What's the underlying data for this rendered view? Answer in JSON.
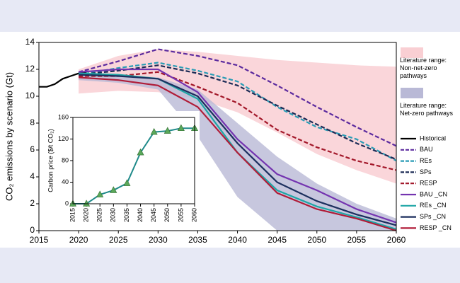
{
  "chart_data": [
    {
      "type": "line",
      "ylabel": "CO₂ emissions by scenario (Gt)",
      "xlim": [
        2015,
        2060
      ],
      "xticks": [
        2015,
        2020,
        2025,
        2030,
        2035,
        2040,
        2045,
        2050,
        2055,
        2060
      ],
      "ylim": [
        0,
        14
      ],
      "yticks": [
        0,
        2,
        4,
        6,
        8,
        10,
        12,
        14
      ],
      "bands": [
        {
          "name": "Literature range: Non-net-zero pathways",
          "color": "#f9cfd3",
          "x": [
            2020,
            2025,
            2030,
            2035,
            2040,
            2045,
            2050,
            2055,
            2060
          ],
          "upper": [
            12.0,
            13.0,
            13.5,
            13.3,
            13.0,
            12.7,
            12.5,
            12.3,
            12.2
          ],
          "lower": [
            10.2,
            10.4,
            10.3,
            9.8,
            8.8,
            7.3,
            5.7,
            4.5,
            3.5
          ]
        },
        {
          "name": "Literature range: Net-zero pathways",
          "color": "#b9b9d6",
          "x": [
            2020,
            2025,
            2030,
            2035,
            2040,
            2045,
            2050,
            2055,
            2060
          ],
          "upper": [
            11.6,
            11.6,
            11.4,
            10.5,
            8.0,
            5.5,
            3.5,
            2.0,
            0.9
          ],
          "lower": [
            11.2,
            11.0,
            10.5,
            7.0,
            2.5,
            0,
            0,
            0,
            0
          ]
        }
      ],
      "series": [
        {
          "name": "Historical",
          "color": "#000000",
          "dashed": false,
          "x": [
            2015,
            2016,
            2017,
            2018,
            2019,
            2020,
            2021
          ],
          "values": [
            10.7,
            10.7,
            10.9,
            11.3,
            11.5,
            11.7,
            11.8
          ]
        },
        {
          "name": "BAU",
          "color": "#5b2a9e",
          "dashed": true,
          "x": [
            2020,
            2025,
            2030,
            2035,
            2040,
            2045,
            2050,
            2055,
            2060
          ],
          "values": [
            11.8,
            12.6,
            13.5,
            13.0,
            12.3,
            10.8,
            9.2,
            7.7,
            6.3
          ]
        },
        {
          "name": "REs",
          "color": "#2a9cb5",
          "dashed": true,
          "x": [
            2020,
            2025,
            2030,
            2035,
            2040,
            2045,
            2050,
            2055,
            2060
          ],
          "values": [
            11.6,
            12.1,
            12.5,
            11.9,
            11.1,
            9.2,
            7.7,
            6.8,
            5.2
          ]
        },
        {
          "name": "SPs",
          "color": "#1b2a55",
          "dashed": true,
          "x": [
            2020,
            2025,
            2030,
            2035,
            2040,
            2045,
            2050,
            2055,
            2060
          ],
          "values": [
            11.6,
            11.9,
            12.3,
            11.7,
            10.8,
            9.3,
            7.9,
            6.5,
            5.3
          ]
        },
        {
          "name": "RESP",
          "color": "#a3182a",
          "dashed": true,
          "x": [
            2020,
            2025,
            2030,
            2035,
            2040,
            2045,
            2050,
            2055,
            2060
          ],
          "values": [
            11.5,
            11.5,
            11.8,
            10.7,
            9.5,
            7.5,
            6.2,
            5.2,
            4.5
          ]
        },
        {
          "name": "BAU _CN",
          "color": "#7434b0",
          "dashed": false,
          "x": [
            2020,
            2025,
            2030,
            2035,
            2040,
            2045,
            2050,
            2055,
            2060
          ],
          "values": [
            11.8,
            12.0,
            12.0,
            10.3,
            6.8,
            4.2,
            3.0,
            1.6,
            0.6
          ]
        },
        {
          "name": "REs _CN",
          "color": "#1fa6a6",
          "dashed": false,
          "x": [
            2020,
            2025,
            2030,
            2035,
            2040,
            2045,
            2050,
            2055,
            2060
          ],
          "values": [
            11.7,
            11.6,
            11.3,
            9.8,
            5.8,
            3.0,
            1.8,
            1.0,
            0.1
          ]
        },
        {
          "name": "SPs _CN",
          "color": "#1c2f5e",
          "dashed": false,
          "x": [
            2020,
            2025,
            2030,
            2035,
            2040,
            2045,
            2050,
            2055,
            2060
          ],
          "values": [
            11.6,
            11.5,
            11.3,
            10.0,
            6.5,
            3.6,
            2.2,
            1.2,
            0.4
          ]
        },
        {
          "name": "RESP _CN",
          "color": "#b01c38",
          "dashed": false,
          "x": [
            2020,
            2025,
            2030,
            2035,
            2040,
            2045,
            2050,
            2055,
            2060
          ],
          "values": [
            11.4,
            11.2,
            10.8,
            9.2,
            5.8,
            2.8,
            1.6,
            0.9,
            0.0
          ]
        }
      ]
    },
    {
      "type": "line",
      "ylabel": "Carbon price ($/t CO₂)",
      "xlim": [
        2015,
        2060
      ],
      "xticks": [
        2015,
        2020,
        2025,
        2030,
        2035,
        2040,
        2045,
        2050,
        2055,
        2060
      ],
      "ylim": [
        0,
        160
      ],
      "yticks": [
        0,
        40,
        80,
        120,
        160
      ],
      "color": "#1f8a8a",
      "marker_color": "#5aa85a",
      "x": [
        2015,
        2020,
        2025,
        2030,
        2035,
        2040,
        2045,
        2050,
        2055,
        2060
      ],
      "values": [
        0,
        0,
        17,
        25,
        38,
        95,
        133,
        135,
        140,
        140
      ]
    }
  ]
}
